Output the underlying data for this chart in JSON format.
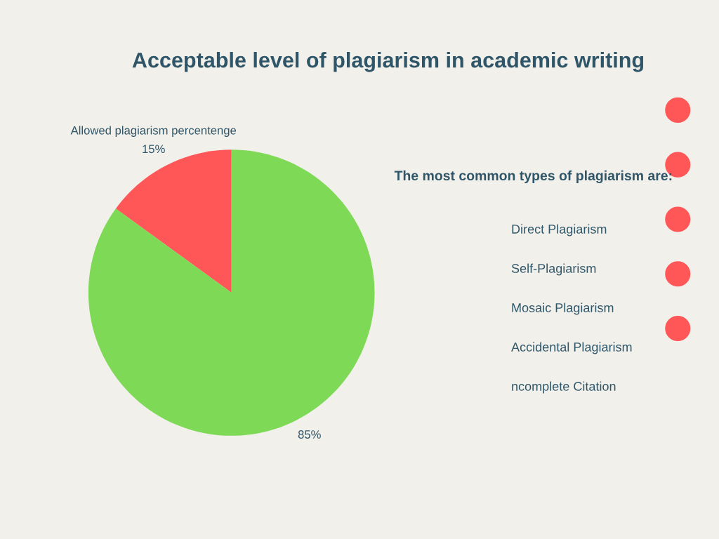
{
  "chart_data": [
    {
      "type": "pie",
      "title": "Acceptable level of plagiarism in academic writing",
      "categories": [
        "Allowed plagiarism percentenge",
        null
      ],
      "values": [
        15,
        85
      ],
      "colors": [
        "#ff5757",
        "#7ed957"
      ],
      "value_labels": [
        "15%",
        "85%"
      ],
      "legend": false
    },
    {
      "type": "other",
      "title": "The most common types of plagiarism are:",
      "annotations": [
        "Direct Plagiarism",
        "Self-Plagiarism",
        "Mosaic Plagiarism",
        "Accidental Plagiarism",
        "ncomplete Citation"
      ]
    }
  ]
}
